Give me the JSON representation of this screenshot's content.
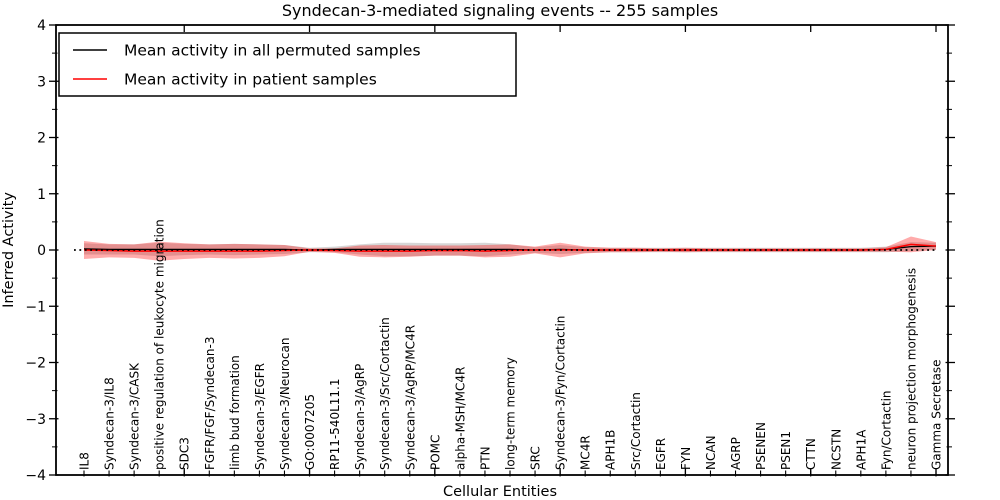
{
  "figure": {
    "title": "Syndecan-3-mediated signaling events -- 255 samples",
    "xlabel": "Cellular Entities",
    "ylabel": "Inferred Activity"
  },
  "legend": {
    "entries": [
      {
        "label": "Mean activity in all permuted samples",
        "color": "#000000"
      },
      {
        "label": "Mean activity in patient samples",
        "color": "#ff0000"
      }
    ]
  },
  "chart_data": {
    "type": "line",
    "title": "Syndecan-3-mediated signaling events -- 255 samples",
    "xlabel": "Cellular Entities",
    "ylabel": "Inferred Activity",
    "ylim": [
      -4,
      4
    ],
    "yticks": [
      -4,
      -3,
      -2,
      -1,
      0,
      1,
      2,
      3,
      4
    ],
    "y_minor_tick_step": 0.5,
    "x_major_tick_indices": [
      4,
      9,
      14,
      19,
      24,
      29,
      34
    ],
    "grid": false,
    "legend_position": "upper left",
    "zero_reference_line": {
      "style": "dotted",
      "color": "#000000",
      "y": 0
    },
    "categories": [
      "IL8",
      "Syndecan-3/IL8",
      "Syndecan-3/CASK",
      "positive regulation of leukocyte migration",
      "SDC3",
      "FGFR/FGF/Syndecan-3",
      "limb bud formation",
      "Syndecan-3/EGFR",
      "Syndecan-3/Neurocan",
      "GO:0007205",
      "RP11-540L11.1",
      "Syndecan-3/AgRP",
      "Syndecan-3/Src/Cortactin",
      "Syndecan-3/AgRP/MC4R",
      "POMC",
      "alpha-MSH/MC4R",
      "PTN",
      "long-term memory",
      "SRC",
      "Syndecan-3/Fyn/Cortactin",
      "MC4R",
      "APH1B",
      "Src/Cortactin",
      "EGFR",
      "FYN",
      "NCAN",
      "AGRP",
      "PSENEN",
      "PSEN1",
      "CTTN",
      "NCSTN",
      "APH1A",
      "Fyn/Cortactin",
      "neuron projection morphogenesis",
      "Gamma Secretase"
    ],
    "series": [
      {
        "name": "Mean activity in all permuted samples",
        "color": "#000000",
        "line_style": "solid",
        "values": [
          0.02,
          0.01,
          0.01,
          0.01,
          0.01,
          0.01,
          0.01,
          0.01,
          0.01,
          0.0,
          0.01,
          0.01,
          0.01,
          0.01,
          0.01,
          0.01,
          0.01,
          0.01,
          0.0,
          0.01,
          0.0,
          0.0,
          0.0,
          0.0,
          0.0,
          0.0,
          0.0,
          0.0,
          0.0,
          0.0,
          0.0,
          0.0,
          0.01,
          0.06,
          0.07
        ]
      },
      {
        "name": "Mean activity in patient samples",
        "color": "#ff0000",
        "line_style": "solid",
        "values": [
          0.0,
          -0.01,
          -0.02,
          -0.02,
          -0.02,
          -0.02,
          -0.02,
          -0.02,
          -0.01,
          0.0,
          -0.01,
          -0.02,
          -0.02,
          -0.02,
          -0.01,
          -0.01,
          -0.02,
          -0.01,
          0.0,
          0.0,
          0.0,
          0.0,
          0.0,
          0.0,
          0.0,
          0.0,
          0.0,
          0.0,
          0.0,
          0.0,
          0.0,
          0.0,
          0.01,
          0.1,
          0.07
        ]
      }
    ],
    "bands": [
      {
        "name": "permuted samples std band",
        "center_series": 0,
        "color": "#787878",
        "alpha": 0.3,
        "half_widths": [
          0.1,
          0.09,
          0.09,
          0.12,
          0.1,
          0.09,
          0.1,
          0.09,
          0.08,
          0.04,
          0.05,
          0.09,
          0.12,
          0.12,
          0.11,
          0.11,
          0.12,
          0.09,
          0.05,
          0.08,
          0.05,
          0.04,
          0.04,
          0.04,
          0.04,
          0.04,
          0.04,
          0.04,
          0.04,
          0.04,
          0.04,
          0.04,
          0.05,
          0.08,
          0.06
        ]
      },
      {
        "name": "patient samples std band",
        "center_series": 1,
        "color": "#ff0000",
        "alpha": 0.33,
        "half_widths": [
          0.16,
          0.12,
          0.12,
          0.17,
          0.14,
          0.12,
          0.13,
          0.12,
          0.1,
          0.03,
          0.04,
          0.1,
          0.11,
          0.1,
          0.09,
          0.09,
          0.11,
          0.11,
          0.06,
          0.13,
          0.06,
          0.04,
          0.04,
          0.03,
          0.04,
          0.03,
          0.03,
          0.03,
          0.03,
          0.03,
          0.03,
          0.03,
          0.04,
          0.14,
          0.07
        ]
      }
    ]
  }
}
